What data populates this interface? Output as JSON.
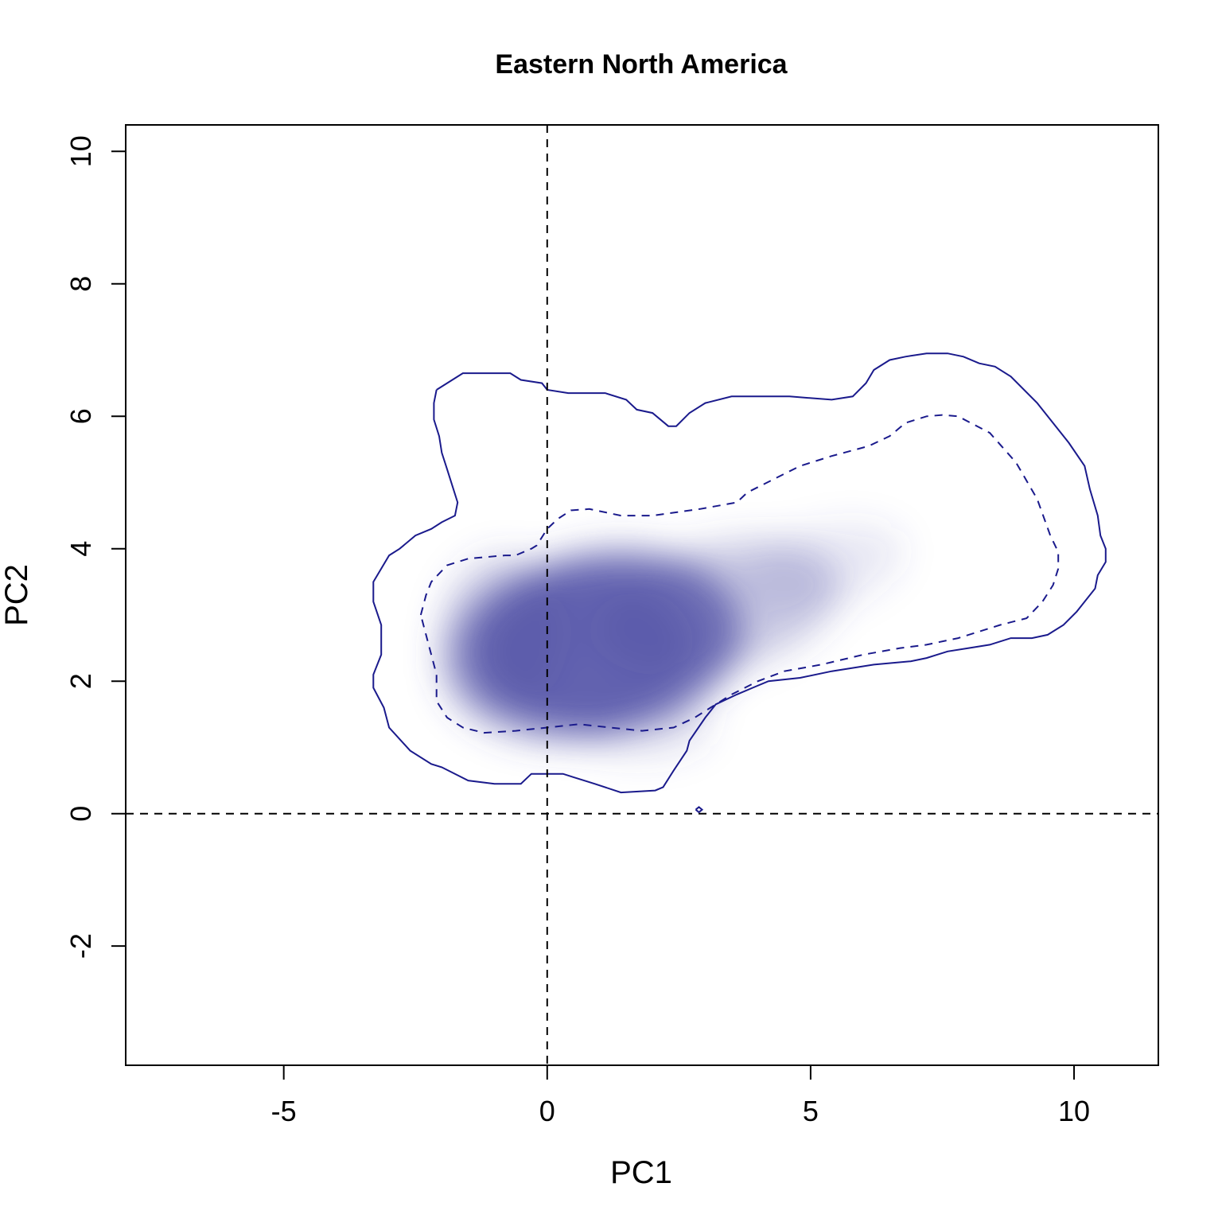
{
  "chart_data": {
    "type": "heatmap",
    "title": "Eastern North America",
    "xlabel": "PC1",
    "ylabel": "PC2",
    "xlim": [
      -8,
      11.6
    ],
    "ylim": [
      -3.8,
      10.4
    ],
    "x_ticks": [
      -5,
      0,
      5,
      10
    ],
    "y_ticks": [
      -2,
      0,
      2,
      4,
      6,
      8,
      10
    ],
    "x_tick_labels": [
      "-5",
      "0",
      "5",
      "10"
    ],
    "y_tick_labels": [
      "-2",
      "0",
      "2",
      "4",
      "6",
      "8",
      "10"
    ],
    "grid": false,
    "reference_lines": {
      "x": 0,
      "y": 0
    },
    "colors": {
      "density": "#4b4ba3",
      "contour": "#1a1a8c",
      "reference": "#000000"
    },
    "density": {
      "peak": [
        1.1,
        2.6
      ],
      "x_range": [
        -2.2,
        6.7
      ],
      "y_range": [
        0.6,
        4.4
      ]
    },
    "contours": [
      {
        "style": "solid",
        "points": [
          [
            -2.1,
            6.4
          ],
          [
            -1.9,
            6.5
          ],
          [
            -1.6,
            6.65
          ],
          [
            -0.7,
            6.65
          ],
          [
            -0.5,
            6.55
          ],
          [
            -0.1,
            6.5
          ],
          [
            0,
            6.4
          ],
          [
            0.4,
            6.35
          ],
          [
            1.1,
            6.35
          ],
          [
            1.5,
            6.25
          ],
          [
            1.7,
            6.1
          ],
          [
            2,
            6.05
          ],
          [
            2.3,
            5.85
          ],
          [
            2.45,
            5.85
          ],
          [
            2.7,
            6.05
          ],
          [
            3,
            6.2
          ],
          [
            3.5,
            6.3
          ],
          [
            4.6,
            6.3
          ],
          [
            5.4,
            6.25
          ],
          [
            5.8,
            6.3
          ],
          [
            6.05,
            6.5
          ],
          [
            6.2,
            6.7
          ],
          [
            6.5,
            6.85
          ],
          [
            6.8,
            6.9
          ],
          [
            7.2,
            6.95
          ],
          [
            7.6,
            6.95
          ],
          [
            7.9,
            6.9
          ],
          [
            8.2,
            6.8
          ],
          [
            8.5,
            6.75
          ],
          [
            8.8,
            6.6
          ],
          [
            9.3,
            6.2
          ],
          [
            9.9,
            5.6
          ],
          [
            10.2,
            5.25
          ],
          [
            10.3,
            4.9
          ],
          [
            10.45,
            4.5
          ],
          [
            10.5,
            4.2
          ],
          [
            10.6,
            4
          ],
          [
            10.6,
            3.8
          ],
          [
            10.45,
            3.6
          ],
          [
            10.4,
            3.4
          ],
          [
            10.05,
            3.05
          ],
          [
            9.8,
            2.85
          ],
          [
            9.5,
            2.7
          ],
          [
            9.2,
            2.65
          ],
          [
            8.8,
            2.65
          ],
          [
            8.4,
            2.55
          ],
          [
            8,
            2.5
          ],
          [
            7.6,
            2.45
          ],
          [
            7.4,
            2.4
          ],
          [
            7.2,
            2.35
          ],
          [
            6.9,
            2.3
          ],
          [
            6.2,
            2.25
          ],
          [
            5.4,
            2.15
          ],
          [
            4.8,
            2.05
          ],
          [
            4.2,
            2
          ],
          [
            3.9,
            1.9
          ],
          [
            3.6,
            1.8
          ],
          [
            3.2,
            1.65
          ],
          [
            3,
            1.45
          ],
          [
            2.7,
            1.1
          ],
          [
            2.65,
            0.95
          ],
          [
            2.4,
            0.65
          ],
          [
            2.2,
            0.4
          ],
          [
            2.05,
            0.35
          ],
          [
            1.4,
            0.32
          ],
          [
            0.9,
            0.45
          ],
          [
            0.7,
            0.5
          ],
          [
            0.5,
            0.55
          ],
          [
            0.3,
            0.6
          ],
          [
            0,
            0.6
          ],
          [
            -0.3,
            0.6
          ],
          [
            -0.5,
            0.45
          ],
          [
            -1,
            0.45
          ],
          [
            -1.5,
            0.5
          ],
          [
            -2,
            0.7
          ],
          [
            -2.2,
            0.75
          ],
          [
            -2.6,
            0.95
          ],
          [
            -3,
            1.3
          ],
          [
            -3.1,
            1.6
          ],
          [
            -3.3,
            1.9
          ],
          [
            -3.3,
            2.1
          ],
          [
            -3.15,
            2.4
          ],
          [
            -3.15,
            2.85
          ],
          [
            -3.3,
            3.2
          ],
          [
            -3.3,
            3.5
          ],
          [
            -3.15,
            3.7
          ],
          [
            -3,
            3.9
          ],
          [
            -2.8,
            4
          ],
          [
            -2.5,
            4.2
          ],
          [
            -2.2,
            4.3
          ],
          [
            -2,
            4.4
          ],
          [
            -1.75,
            4.5
          ],
          [
            -1.7,
            4.7
          ],
          [
            -1.8,
            4.95
          ],
          [
            -1.9,
            5.2
          ],
          [
            -2,
            5.45
          ],
          [
            -2.05,
            5.7
          ],
          [
            -2.15,
            5.95
          ],
          [
            -2.15,
            6.2
          ],
          [
            -2.1,
            6.4
          ]
        ]
      },
      {
        "style": "dashed",
        "points": [
          [
            -2.4,
            3
          ],
          [
            -2.3,
            3.3
          ],
          [
            -2.2,
            3.5
          ],
          [
            -1.9,
            3.75
          ],
          [
            -1.5,
            3.85
          ],
          [
            -0.8,
            3.9
          ],
          [
            -0.6,
            3.9
          ],
          [
            -0.3,
            4
          ],
          [
            -0.2,
            4.05
          ],
          [
            0,
            4.3
          ],
          [
            0.2,
            4.45
          ],
          [
            0.45,
            4.58
          ],
          [
            0.8,
            4.6
          ],
          [
            1.4,
            4.5
          ],
          [
            2,
            4.5
          ],
          [
            2.9,
            4.6
          ],
          [
            3.6,
            4.7
          ],
          [
            3.8,
            4.85
          ],
          [
            4.3,
            5.05
          ],
          [
            4.8,
            5.25
          ],
          [
            5.4,
            5.4
          ],
          [
            6.1,
            5.55
          ],
          [
            6.5,
            5.7
          ],
          [
            6.8,
            5.9
          ],
          [
            7.2,
            6
          ],
          [
            7.5,
            6.02
          ],
          [
            7.8,
            6
          ],
          [
            8.4,
            5.75
          ],
          [
            8.9,
            5.3
          ],
          [
            9.3,
            4.75
          ],
          [
            9.55,
            4.2
          ],
          [
            9.7,
            3.95
          ],
          [
            9.7,
            3.7
          ],
          [
            9.6,
            3.45
          ],
          [
            9.4,
            3.2
          ],
          [
            9.1,
            2.95
          ],
          [
            8.6,
            2.85
          ],
          [
            8.2,
            2.75
          ],
          [
            7.8,
            2.65
          ],
          [
            7.2,
            2.55
          ],
          [
            6.7,
            2.5
          ],
          [
            6,
            2.4
          ],
          [
            5.2,
            2.25
          ],
          [
            4.5,
            2.15
          ],
          [
            4,
            2
          ],
          [
            3.5,
            1.8
          ],
          [
            3.1,
            1.6
          ],
          [
            2.8,
            1.45
          ],
          [
            2.4,
            1.3
          ],
          [
            1.8,
            1.25
          ],
          [
            1.2,
            1.3
          ],
          [
            0.6,
            1.35
          ],
          [
            0,
            1.3
          ],
          [
            -0.6,
            1.25
          ],
          [
            -1.2,
            1.22
          ],
          [
            -1.6,
            1.3
          ],
          [
            -1.9,
            1.45
          ],
          [
            -2.1,
            1.7
          ],
          [
            -2.1,
            2.1
          ],
          [
            -2.2,
            2.4
          ],
          [
            -2.3,
            2.7
          ],
          [
            -2.4,
            3
          ]
        ]
      },
      {
        "style": "solid",
        "points": [
          [
            2.82,
            0.06
          ],
          [
            2.88,
            0.1
          ],
          [
            2.94,
            0.06
          ],
          [
            2.88,
            0.02
          ],
          [
            2.82,
            0.06
          ]
        ]
      }
    ]
  }
}
